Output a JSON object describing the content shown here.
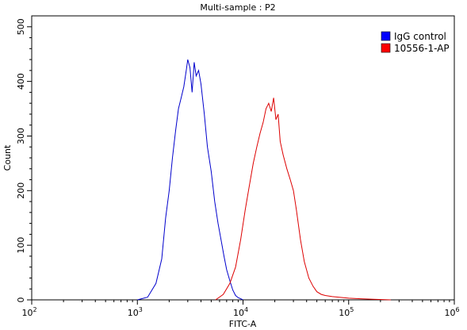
{
  "chart_data": {
    "type": "line",
    "title": "Multi-sample : P2",
    "xlabel": "FITC-A",
    "ylabel": "Count",
    "x_scale": "log",
    "xlim": [
      100,
      1000000
    ],
    "ylim": [
      0,
      520
    ],
    "x_ticks": [
      {
        "value": 100,
        "base": "10",
        "exp": "2"
      },
      {
        "value": 1000,
        "base": "10",
        "exp": "3"
      },
      {
        "value": 10000,
        "base": "10",
        "exp": "4"
      },
      {
        "value": 100000,
        "base": "10",
        "exp": "5"
      },
      {
        "value": 1000000,
        "base": "10",
        "exp": "6"
      }
    ],
    "y_ticks": [
      "0",
      "100",
      "200",
      "300",
      "400",
      "500"
    ],
    "grid": false,
    "legend_position": "top-right",
    "series": [
      {
        "name": "IgG control",
        "color": "#0000cc",
        "legend_color": "#0000ff",
        "x": [
          1000,
          1250,
          1500,
          1700,
          1850,
          2000,
          2150,
          2300,
          2450,
          2600,
          2750,
          2900,
          3000,
          3150,
          3300,
          3450,
          3600,
          3800,
          4000,
          4300,
          4600,
          5000,
          5400,
          5800,
          6200,
          6600,
          7000,
          7500,
          8000,
          8500,
          9000,
          9500,
          10000
        ],
        "y": [
          0,
          5,
          30,
          75,
          150,
          200,
          260,
          310,
          350,
          370,
          390,
          420,
          440,
          425,
          380,
          435,
          410,
          420,
          395,
          340,
          280,
          235,
          180,
          140,
          110,
          80,
          55,
          35,
          18,
          8,
          4,
          2,
          0
        ]
      },
      {
        "name": "10556-1-AP",
        "color": "#dd0000",
        "legend_color": "#ff0000",
        "x": [
          5500,
          6500,
          7500,
          8500,
          9500,
          10500,
          11500,
          12500,
          13500,
          14500,
          15500,
          16500,
          17500,
          18500,
          19500,
          20500,
          21500,
          22500,
          24000,
          26000,
          28000,
          30000,
          32000,
          35000,
          38000,
          42000,
          46000,
          50000,
          55000,
          60000,
          70000,
          80000,
          100000,
          130000,
          170000,
          250000
        ],
        "y": [
          0,
          10,
          30,
          60,
          110,
          165,
          210,
          250,
          280,
          305,
          325,
          350,
          360,
          345,
          370,
          330,
          340,
          290,
          265,
          240,
          220,
          200,
          165,
          110,
          70,
          40,
          25,
          15,
          10,
          8,
          6,
          5,
          3,
          2,
          1,
          0
        ]
      }
    ]
  }
}
